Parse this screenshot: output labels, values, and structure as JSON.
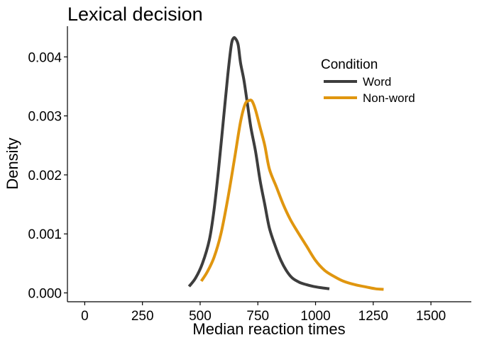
{
  "chart_data": {
    "type": "line",
    "title": "Lexical decision",
    "xlabel": "Median reaction times",
    "ylabel": "Density",
    "xlim": [
      -75,
      1675
    ],
    "ylim": [
      -0.00015,
      0.00452
    ],
    "x_ticks": [
      0,
      250,
      500,
      750,
      1000,
      1250,
      1500
    ],
    "x_tick_labels": [
      "0",
      "250",
      "500",
      "750",
      "1000",
      "1250",
      "1500"
    ],
    "y_ticks": [
      0,
      0.001,
      0.002,
      0.003,
      0.004
    ],
    "y_tick_labels": [
      "0.000",
      "0.001",
      "0.002",
      "0.003",
      "0.004"
    ],
    "grid": false,
    "legend": {
      "title": "Condition",
      "position": "top-right"
    },
    "series": [
      {
        "name": "Word",
        "color": "#3d3d3d",
        "x": [
          452,
          480,
          510,
          540,
          560,
          580,
          600,
          620,
          635,
          645,
          655,
          665,
          675,
          690,
          705,
          720,
          740,
          760,
          780,
          800,
          825,
          850,
          875,
          900,
          930,
          960,
          990,
          1020,
          1060
        ],
        "y": [
          0.00011,
          0.00025,
          0.0005,
          0.0009,
          0.0014,
          0.0021,
          0.0029,
          0.0037,
          0.0042,
          0.00432,
          0.0043,
          0.0042,
          0.0039,
          0.0036,
          0.0032,
          0.0028,
          0.0024,
          0.0019,
          0.0015,
          0.0011,
          0.0008,
          0.00055,
          0.00037,
          0.00025,
          0.00018,
          0.00014,
          0.00011,
          9e-05,
          7e-05
        ]
      },
      {
        "name": "Non-word",
        "color": "#e0960f",
        "x": [
          505,
          530,
          560,
          590,
          620,
          650,
          675,
          695,
          712,
          725,
          740,
          760,
          780,
          800,
          830,
          860,
          890,
          920,
          960,
          1000,
          1040,
          1080,
          1120,
          1170,
          1220,
          1260,
          1295
        ],
        "y": [
          0.0002,
          0.00035,
          0.0006,
          0.001,
          0.0016,
          0.0023,
          0.0029,
          0.0032,
          0.00326,
          0.00325,
          0.0031,
          0.0028,
          0.0025,
          0.0021,
          0.0018,
          0.0015,
          0.00125,
          0.00105,
          0.0008,
          0.00055,
          0.00038,
          0.00028,
          0.0002,
          0.00014,
          0.0001,
          7e-05,
          6e-05
        ]
      }
    ]
  }
}
